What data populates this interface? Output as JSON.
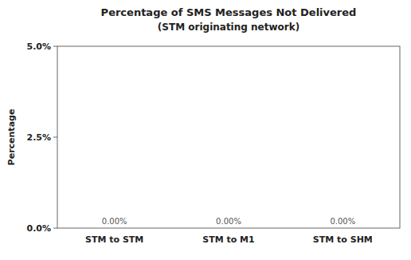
{
  "chart_data": {
    "type": "bar",
    "title": "Percentage  of SMS Messages  Not Delivered",
    "subtitle": "(STM originating network)",
    "categories": [
      "STM to STM",
      "STM to M1",
      "STM to SHM"
    ],
    "values": [
      0.0,
      0.0,
      0.0
    ],
    "data_labels": true,
    "value_labels": [
      "0.00%",
      "0.00%",
      "0.00%"
    ],
    "y_label": "Percentage",
    "ylim": [
      0.0,
      0.05
    ],
    "yticks": [
      {
        "value": 0.0,
        "label": "0.0%"
      },
      {
        "value": 0.025,
        "label": "2.5%"
      },
      {
        "value": 0.05,
        "label": "5.0%"
      }
    ],
    "grid": false
  }
}
